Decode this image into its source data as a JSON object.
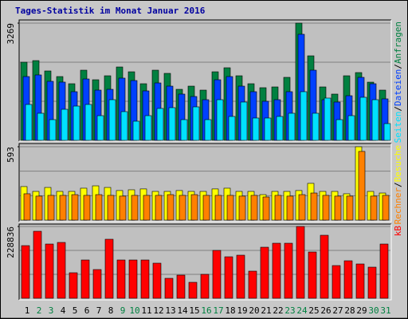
{
  "title": "Tages-Statistik im Monat Januar 2016",
  "legend_separator": "/",
  "chart_data": [
    {
      "type": "bar",
      "categories": [
        "1",
        "2",
        "3",
        "4",
        "5",
        "6",
        "7",
        "8",
        "9",
        "10",
        "11",
        "12",
        "13",
        "14",
        "15",
        "16",
        "17",
        "18",
        "19",
        "20",
        "21",
        "22",
        "23",
        "24",
        "25",
        "26",
        "27",
        "28",
        "29",
        "30",
        "31"
      ],
      "category_colors": [
        "#000000",
        "#008040",
        "#008040",
        "#000000",
        "#000000",
        "#000000",
        "#000000",
        "#000000",
        "#008040",
        "#008040",
        "#000000",
        "#000000",
        "#000000",
        "#000000",
        "#000000",
        "#008040",
        "#008040",
        "#000000",
        "#000000",
        "#000000",
        "#000000",
        "#000000",
        "#008040",
        "#008040",
        "#000000",
        "#000000",
        "#000000",
        "#000000",
        "#000000",
        "#008040",
        "#008040"
      ],
      "series": [
        {
          "name": "Anfragen",
          "color": "#008040",
          "values": [
            2179,
            2224,
            1935,
            1779,
            1579,
            1957,
            1690,
            1801,
            2046,
            1912,
            1579,
            1957,
            1868,
            1423,
            1512,
            1401,
            1912,
            2024,
            1801,
            1579,
            1468,
            1490,
            1757,
            3269,
            2357,
            1490,
            1290,
            1801,
            1890,
            1623,
            1401
          ]
        },
        {
          "name": "Dateien",
          "color": "#0040ff",
          "values": [
            1779,
            1824,
            1646,
            1624,
            1357,
            1712,
            1401,
            1423,
            1735,
            1668,
            1379,
            1601,
            1512,
            1290,
            1223,
            1134,
            1690,
            1779,
            1512,
            1357,
            1090,
            1134,
            1357,
            2958,
            1957,
            1134,
            1068,
            1245,
            1757,
            1579,
            1157
          ]
        },
        {
          "name": "Seiten",
          "color": "#00e0ff",
          "values": [
            1001,
            756,
            578,
            867,
            956,
            1001,
            689,
            1134,
            801,
            534,
            689,
            890,
            912,
            578,
            934,
            578,
            1134,
            667,
            1068,
            623,
            623,
            667,
            756,
            1357,
            756,
            1179,
            578,
            689,
            1201,
            1134,
            467
          ]
        }
      ],
      "ylim": [
        0,
        3269
      ],
      "yticks": [
        3269
      ],
      "grid_divisions": 3
    },
    {
      "type": "bar",
      "series": [
        {
          "name": "Besuche",
          "color": "#ffff00",
          "values": [
            271,
            232,
            264,
            232,
            232,
            258,
            277,
            264,
            239,
            245,
            252,
            232,
            232,
            239,
            232,
            232,
            252,
            258,
            232,
            232,
            206,
            232,
            232,
            239,
            297,
            232,
            232,
            213,
            593,
            232,
            219
          ]
        },
        {
          "name": "Rechner",
          "color": "#ff8000",
          "values": [
            213,
            194,
            200,
            200,
            206,
            200,
            206,
            200,
            194,
            200,
            200,
            200,
            206,
            200,
            206,
            200,
            200,
            200,
            194,
            200,
            187,
            200,
            194,
            206,
            219,
            200,
            194,
            194,
            555,
            194,
            200
          ]
        }
      ],
      "ylim": [
        0,
        593
      ],
      "yticks": [
        593
      ],
      "grid_divisions": 3
    },
    {
      "type": "bar",
      "series": [
        {
          "name": "kB",
          "color": "#ff0000",
          "values": [
            167812,
            213578,
            172897,
            177982,
            81363,
            122045,
            91534,
            188152,
            122045,
            122045,
            122045,
            111874,
            63565,
            73735,
            50852,
            76278,
            152556,
            132215,
            137300,
            86448,
            162726,
            175439,
            175439,
            228836,
            147471,
            200865,
            104247,
            119502,
            109332,
            99161,
            172897
          ]
        }
      ],
      "ylim": [
        0,
        228836
      ],
      "yticks": [
        228836
      ],
      "grid_divisions": 3
    }
  ]
}
